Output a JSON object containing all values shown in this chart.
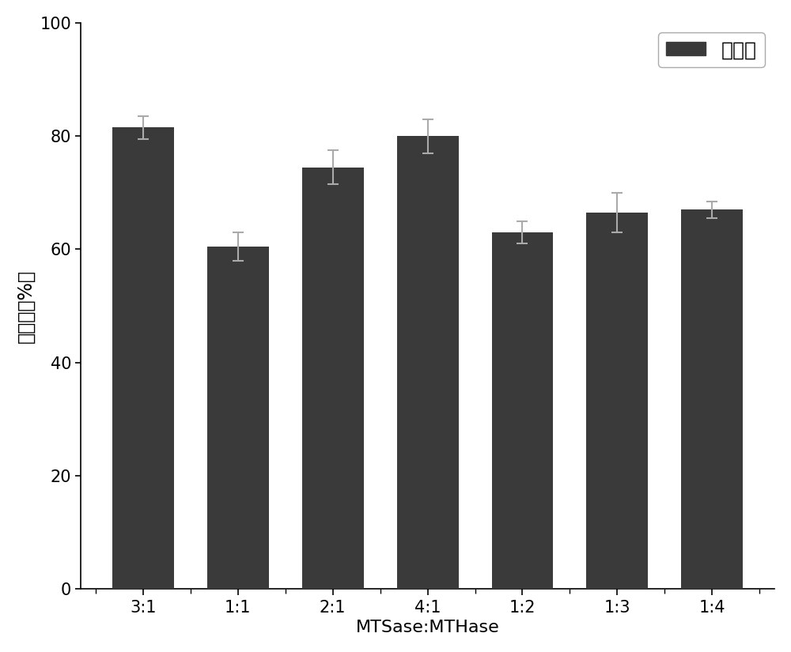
{
  "categories": [
    "3:1",
    "1:1",
    "2:1",
    "4:1",
    "1:2",
    "1:3",
    "1:4"
  ],
  "values": [
    81.5,
    60.5,
    74.5,
    80.0,
    63.0,
    66.5,
    67.0
  ],
  "errors": [
    2.0,
    2.5,
    3.0,
    3.0,
    2.0,
    3.5,
    1.5
  ],
  "bar_color": "#3a3a3a",
  "error_color": "#aaaaaa",
  "background_color": "#ffffff",
  "ylabel": "转化率（%）",
  "xlabel": "MTSase:MTHase",
  "legend_label": "转化率",
  "ylim": [
    0,
    100
  ],
  "yticks": [
    0,
    20,
    40,
    60,
    80,
    100
  ],
  "ylabel_fontsize": 17,
  "xlabel_fontsize": 16,
  "tick_fontsize": 15,
  "legend_fontsize": 18,
  "bar_width": 0.65
}
